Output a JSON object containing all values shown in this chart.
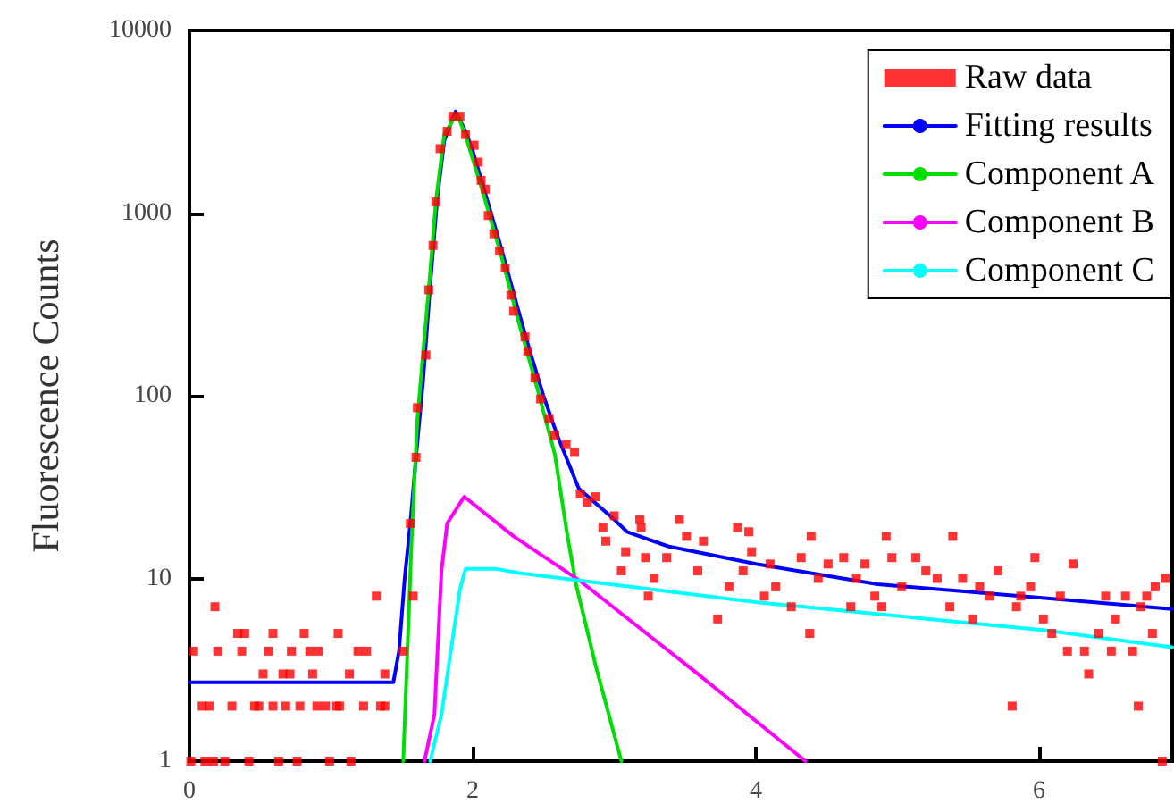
{
  "chart_data": {
    "type": "scatter",
    "ylabel": "Fluorescence Counts",
    "log": "y",
    "legend": "top right",
    "xlim": [
      0,
      6.94
    ],
    "xticks": [
      0,
      2,
      4,
      6
    ],
    "ylim": [
      1,
      10000
    ],
    "yticks": [
      1,
      10,
      100,
      1000,
      10000
    ],
    "series": [
      {
        "name": "Raw data",
        "marker": "square",
        "color": "#ff0000",
        "x": [
          0.01,
          0.11,
          0.17,
          0.25,
          0.42,
          0.63,
          0.76,
          0.99,
          1.14,
          0.09,
          0.14,
          0.3,
          0.46,
          0.49,
          0.59,
          0.68,
          0.78,
          0.9,
          0.96,
          1.04,
          1.06,
          1.23,
          1.35,
          1.38,
          0.52,
          0.66,
          0.71,
          0.87,
          1.13,
          1.38,
          0.03,
          0.2,
          0.37,
          0.56,
          0.72,
          0.85,
          0.91,
          1.19,
          1.25,
          1.51,
          0.34,
          0.39,
          0.59,
          0.81,
          1.05,
          0.18,
          1.32,
          1.58,
          1.56,
          1.6,
          1.61,
          1.67,
          1.69,
          1.72,
          1.74,
          1.77,
          1.82,
          1.86,
          1.91,
          1.95,
          2.01,
          2.04,
          2.06,
          2.09,
          2.11,
          2.15,
          2.19,
          2.23,
          2.27,
          2.29,
          2.37,
          2.39,
          2.44,
          2.48,
          2.54,
          2.58,
          2.66,
          2.72,
          2.76,
          2.81,
          2.87,
          2.92,
          3.0,
          2.94,
          3.05,
          3.08,
          3.18,
          3.19,
          3.24,
          3.28,
          3.22,
          3.37,
          3.46,
          3.51,
          3.59,
          3.63,
          3.73,
          3.81,
          3.87,
          3.95,
          3.91,
          3.97,
          4.06,
          4.1,
          4.14,
          4.25,
          4.32,
          4.38,
          4.39,
          4.44,
          4.51,
          4.62,
          4.67,
          4.71,
          4.77,
          4.84,
          4.89,
          4.92,
          4.96,
          5.03,
          5.13,
          5.2,
          5.28,
          5.37,
          5.39,
          5.46,
          5.53,
          5.58,
          5.65,
          5.71,
          5.81,
          5.84,
          5.87,
          5.94,
          5.97,
          6.03,
          6.09,
          6.15,
          6.2,
          6.24,
          6.32,
          6.35,
          6.42,
          6.47,
          6.51,
          6.54,
          6.61,
          6.66,
          6.7,
          6.72,
          6.76,
          6.8,
          6.82,
          6.89,
          6.87
        ],
        "values": [
          1,
          1,
          1,
          1,
          1,
          1,
          1,
          1,
          1,
          2,
          2,
          2,
          2,
          2,
          2,
          2,
          2,
          2,
          2,
          2,
          2,
          2,
          2,
          2,
          3,
          3,
          3,
          3,
          3,
          3,
          4,
          4,
          4,
          4,
          4,
          4,
          4,
          4,
          4,
          4,
          5,
          5,
          5,
          5,
          5,
          7,
          8,
          8,
          20,
          46,
          86,
          167,
          380,
          665,
          1150,
          2250,
          2800,
          3390,
          3390,
          2690,
          2350,
          1900,
          1510,
          1350,
          970,
          770,
          620,
          500,
          355,
          290,
          210,
          175,
          125,
          96,
          75,
          61,
          54,
          49,
          29,
          26,
          28,
          19,
          22,
          16,
          11,
          14,
          21,
          19,
          8,
          10,
          13,
          13,
          21,
          17,
          11,
          16,
          6,
          9,
          19,
          18,
          11,
          14,
          8,
          12,
          9,
          7,
          13,
          5,
          17,
          10,
          12,
          13,
          7,
          10,
          12,
          8,
          7,
          17,
          13,
          9,
          13,
          11,
          10,
          7,
          17,
          10,
          6,
          9,
          8,
          11,
          2,
          7,
          8,
          9,
          13,
          6,
          5,
          8,
          4,
          12,
          4,
          3,
          5,
          8,
          4,
          6,
          8,
          4,
          2,
          7,
          8,
          5,
          9,
          10,
          1
        ]
      },
      {
        "name": "Fitting results",
        "type": "line",
        "marker": "none",
        "color": "#0000ff",
        "x": [
          0,
          1.44,
          1.48,
          1.52,
          1.56,
          1.6,
          1.65,
          1.7,
          1.75,
          1.8,
          1.88,
          1.95,
          2.0,
          2.1,
          2.2,
          2.33,
          2.4,
          2.5,
          2.6,
          2.75,
          3.0,
          3.09,
          3.38,
          4.0,
          4.86,
          6.04,
          6.94
        ],
        "values": [
          2.7,
          2.7,
          4,
          10,
          20,
          46,
          120,
          400,
          1200,
          2500,
          3600,
          2800,
          2200,
          1200,
          650,
          280,
          180,
          100,
          60,
          31,
          21,
          18,
          15,
          12,
          9.3,
          7.8,
          6.8
        ]
      },
      {
        "name": "Component A",
        "type": "line",
        "marker": "none",
        "color": "#00dd00",
        "x": [
          1.51,
          1.57,
          1.61,
          1.66,
          1.7,
          1.74,
          1.8,
          1.89,
          1.95,
          2.08,
          2.2,
          2.33,
          2.46,
          2.58,
          2.67,
          2.73,
          2.87,
          3.05
        ],
        "values": [
          1,
          17,
          75,
          210,
          475,
          1150,
          2700,
          3500,
          2650,
          1240,
          590,
          245,
          107,
          48,
          17,
          9.3,
          3.3,
          1
        ]
      },
      {
        "name": "Component B",
        "type": "line",
        "marker": "none",
        "color": "#ff00ff",
        "x": [
          1.66,
          1.73,
          1.78,
          1.82,
          1.94,
          2.29,
          2.75,
          3.59,
          4.35
        ],
        "values": [
          1,
          1.8,
          11,
          20,
          28,
          17,
          9.8,
          3.0,
          1
        ]
      },
      {
        "name": "Component C",
        "type": "line",
        "marker": "none",
        "color": "#00ffff",
        "x": [
          1.7,
          1.78,
          1.91,
          1.95,
          2.16,
          2.33,
          4.01,
          6.04,
          6.94
        ],
        "values": [
          1,
          1.8,
          8.7,
          11.3,
          11.3,
          10.7,
          7.4,
          5.2,
          4.2
        ]
      }
    ]
  }
}
